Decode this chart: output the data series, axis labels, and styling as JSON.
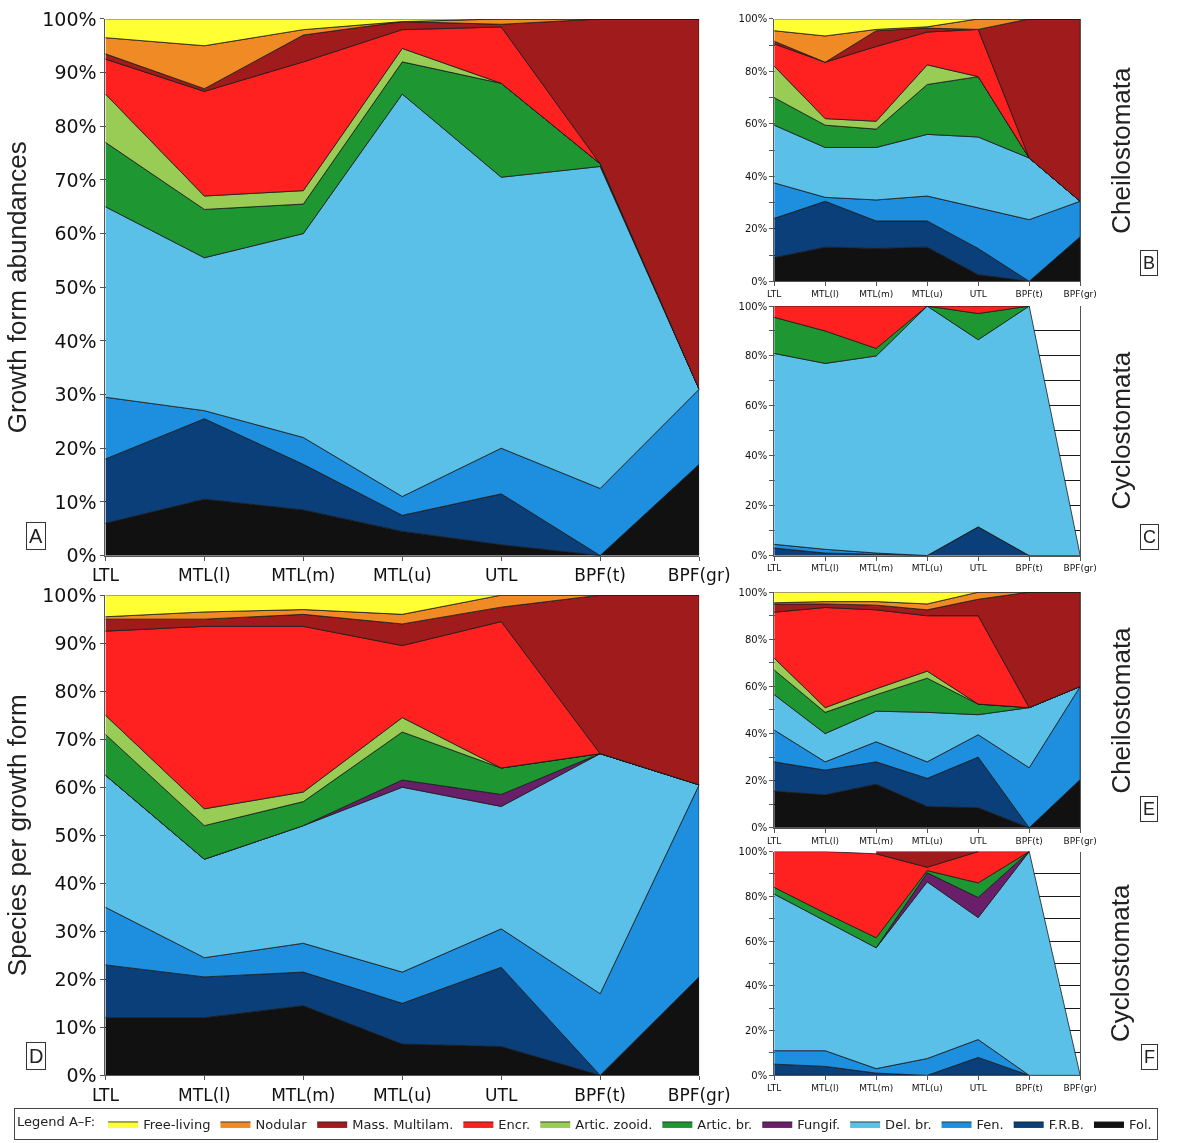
{
  "chart_data": [
    {
      "type": "area",
      "stacked": true,
      "ylabel": "Growth form abundances",
      "annotations": [
        "A"
      ],
      "legend": "bottom",
      "legend_title": "Legend A–F:",
      "grid": "y",
      "ylim": [
        0,
        100
      ],
      "yticks": [
        {
          "value": 0,
          "label": "0%"
        },
        {
          "value": 10,
          "label": "10%"
        },
        {
          "value": 20,
          "label": "20%"
        },
        {
          "value": 30,
          "label": "30%"
        },
        {
          "value": 40,
          "label": "40%"
        },
        {
          "value": 50,
          "label": "50%"
        },
        {
          "value": 60,
          "label": "60%"
        },
        {
          "value": 70,
          "label": "70%"
        },
        {
          "value": 80,
          "label": "80%"
        },
        {
          "value": 90,
          "label": "90%"
        },
        {
          "value": 100,
          "label": "100%"
        }
      ],
      "categories": [
        "LTL",
        "MTL(l)",
        "MTL(m)",
        "MTL(u)",
        "UTL",
        "BPF(t)",
        "BPF(gr)"
      ],
      "series": [
        {
          "name": "Fol.",
          "color": "#111111",
          "values": [
            6,
            10.5,
            8.5,
            4.5,
            2,
            0,
            17
          ]
        },
        {
          "name": "F.R.B.",
          "color": "#0a3f7a",
          "values": [
            12,
            15,
            8.5,
            3,
            9.5,
            0,
            0
          ]
        },
        {
          "name": "Fen.",
          "color": "#1e8fdf",
          "values": [
            11.5,
            1.5,
            5,
            3.5,
            8.5,
            12.5,
            14
          ]
        },
        {
          "name": "Del. br.",
          "color": "#5bc0e8",
          "values": [
            35.5,
            28.5,
            38,
            75,
            50.5,
            60,
            0
          ]
        },
        {
          "name": "Artic. br.",
          "color": "#1e9632",
          "values": [
            12,
            9,
            5.5,
            6,
            17.5,
            0.5,
            0
          ]
        },
        {
          "name": "Artic. zooid.",
          "color": "#99cc55",
          "values": [
            9,
            2.5,
            2.5,
            2.5,
            0,
            0,
            0
          ]
        },
        {
          "name": "Encr.",
          "color": "#ff2020",
          "values": [
            6.5,
            19.5,
            24,
            3.5,
            10.5,
            0,
            0
          ]
        },
        {
          "name": "Mass. Multilam.",
          "color": "#a01c1c",
          "values": [
            1,
            0.5,
            5,
            1.5,
            0.5,
            27,
            69
          ]
        },
        {
          "name": "Nodular",
          "color": "#f08a24",
          "values": [
            3,
            8,
            1,
            0,
            1,
            0,
            0
          ]
        },
        {
          "name": "Free-living",
          "color": "#ffff33",
          "values": [
            3.5,
            5,
            2,
            0.5,
            0,
            0,
            0
          ]
        }
      ]
    },
    {
      "type": "area",
      "stacked": true,
      "ylabel": "Cheilostomata",
      "annotations": [
        "B"
      ],
      "legend": "bottom",
      "grid": "y",
      "ylim": [
        0,
        100
      ],
      "yticks": [
        {
          "value": 0,
          "label": "0%"
        },
        {
          "value": 10,
          "label": null
        },
        {
          "value": 20,
          "label": "20%"
        },
        {
          "value": 30,
          "label": null
        },
        {
          "value": 40,
          "label": "40%"
        },
        {
          "value": 50,
          "label": null
        },
        {
          "value": 60,
          "label": "60%"
        },
        {
          "value": 70,
          "label": null
        },
        {
          "value": 80,
          "label": "80%"
        },
        {
          "value": 90,
          "label": null
        },
        {
          "value": 100,
          "label": "100%"
        }
      ],
      "categories": [
        "LTL",
        "MTL(l)",
        "MTL(m)",
        "MTL(u)",
        "UTL",
        "BPF(t)",
        "BPF(gr)"
      ],
      "series": [
        {
          "name": "Fol.",
          "color": "#111111",
          "values": [
            9,
            13,
            12.5,
            13,
            2.5,
            0,
            17
          ]
        },
        {
          "name": "F.R.B.",
          "color": "#0a3f7a",
          "values": [
            15,
            17.5,
            10.5,
            10,
            10,
            0,
            0
          ]
        },
        {
          "name": "Fen.",
          "color": "#1e8fdf",
          "values": [
            13.5,
            1.5,
            8,
            9.5,
            15.5,
            23.5,
            13.5
          ]
        },
        {
          "name": "Del. br.",
          "color": "#5bc0e8",
          "values": [
            22,
            19,
            20,
            23.5,
            27,
            23.5,
            0
          ]
        },
        {
          "name": "Artic. br.",
          "color": "#1e9632",
          "values": [
            10.5,
            8.5,
            7,
            19,
            23,
            0,
            0
          ]
        },
        {
          "name": "Artic. zooid.",
          "color": "#99cc55",
          "values": [
            12,
            2.5,
            3,
            7.5,
            0,
            0,
            0
          ]
        },
        {
          "name": "Encr.",
          "color": "#ff2020",
          "values": [
            8.5,
            21.5,
            28.5,
            12.5,
            18,
            0,
            0
          ]
        },
        {
          "name": "Mass. Multilam.",
          "color": "#a01c1c",
          "values": [
            1,
            0,
            6,
            1.5,
            0,
            53,
            69.5
          ]
        },
        {
          "name": "Nodular",
          "color": "#f08a24",
          "values": [
            4,
            10,
            0.5,
            0.5,
            4,
            0,
            0
          ]
        },
        {
          "name": "Free-living",
          "color": "#ffff33",
          "values": [
            4.5,
            6.5,
            4,
            3,
            0,
            0,
            0
          ]
        }
      ]
    },
    {
      "type": "area",
      "stacked": true,
      "ylabel": "Cyclostomata",
      "annotations": [
        "C"
      ],
      "legend": "bottom",
      "grid": "y",
      "ylim": [
        0,
        100
      ],
      "yticks": [
        {
          "value": 0,
          "label": "0%"
        },
        {
          "value": 10,
          "label": null
        },
        {
          "value": 20,
          "label": "20%"
        },
        {
          "value": 30,
          "label": null
        },
        {
          "value": 40,
          "label": "40%"
        },
        {
          "value": 50,
          "label": null
        },
        {
          "value": 60,
          "label": "60%"
        },
        {
          "value": 70,
          "label": null
        },
        {
          "value": 80,
          "label": "80%"
        },
        {
          "value": 90,
          "label": null
        },
        {
          "value": 100,
          "label": "100%"
        }
      ],
      "categories": [
        "LTL",
        "MTL(l)",
        "MTL(m)",
        "MTL(u)",
        "UTL",
        "BPF(t)",
        "BPF(gr)"
      ],
      "series": [
        {
          "name": "F.R.B.",
          "color": "#0a3f7a",
          "values": [
            3,
            1,
            0.5,
            0,
            11.5,
            0,
            0
          ]
        },
        {
          "name": "Fen.",
          "color": "#1e8fdf",
          "values": [
            1.5,
            1.5,
            0.5,
            0,
            0,
            0,
            null
          ]
        },
        {
          "name": "Del. br.",
          "color": "#5bc0e8",
          "values": [
            76.5,
            74.5,
            79,
            100,
            75,
            100,
            0
          ]
        },
        {
          "name": "Artic. br.",
          "color": "#1e9632",
          "values": [
            14.5,
            13,
            3,
            0,
            10.5,
            0,
            null
          ]
        },
        {
          "name": "Encr.",
          "color": "#ff2020",
          "values": [
            4.5,
            10,
            17,
            0,
            3,
            0,
            null
          ]
        }
      ]
    },
    {
      "type": "area",
      "stacked": true,
      "ylabel": "Species per growth form",
      "annotations": [
        "D"
      ],
      "grid": "y",
      "ylim": [
        0,
        100
      ],
      "legend": "bottom",
      "yticks": [
        {
          "value": 0,
          "label": "0%"
        },
        {
          "value": 10,
          "label": "10%"
        },
        {
          "value": 20,
          "label": "20%"
        },
        {
          "value": 30,
          "label": "30%"
        },
        {
          "value": 40,
          "label": "40%"
        },
        {
          "value": 50,
          "label": "50%"
        },
        {
          "value": 60,
          "label": "60%"
        },
        {
          "value": 70,
          "label": "70%"
        },
        {
          "value": 80,
          "label": "80%"
        },
        {
          "value": 90,
          "label": "90%"
        },
        {
          "value": 100,
          "label": "100%"
        }
      ],
      "categories": [
        "LTL",
        "MTL(l)",
        "MTL(m)",
        "MTL(u)",
        "UTL",
        "BPF(t)",
        "BPF(gr)"
      ],
      "series": [
        {
          "name": "Fol.",
          "color": "#111111",
          "values": [
            12,
            12,
            14.5,
            6.5,
            6,
            0,
            20.5
          ]
        },
        {
          "name": "F.R.B.",
          "color": "#0a3f7a",
          "values": [
            11,
            8.5,
            7,
            8.5,
            16.5,
            0,
            0
          ]
        },
        {
          "name": "Fen.",
          "color": "#1e8fdf",
          "values": [
            12,
            4,
            6,
            6.5,
            8,
            17,
            40
          ]
        },
        {
          "name": "Del. br.",
          "color": "#5bc0e8",
          "values": [
            27.5,
            20.5,
            24.5,
            38.5,
            25.5,
            50,
            0
          ]
        },
        {
          "name": "Fungif.",
          "color": "#6b1f6b",
          "values": [
            0,
            0,
            0,
            1.5,
            2.5,
            0,
            0
          ]
        },
        {
          "name": "Artic. br.",
          "color": "#1e9632",
          "values": [
            8.5,
            7,
            5,
            10,
            5.5,
            0,
            0
          ]
        },
        {
          "name": "Artic. zooid.",
          "color": "#99cc55",
          "values": [
            4,
            3.5,
            2,
            3,
            0,
            0,
            0
          ]
        },
        {
          "name": "Encr.",
          "color": "#ff2020",
          "values": [
            17.5,
            38,
            34.5,
            15,
            30.5,
            0,
            0
          ]
        },
        {
          "name": "Mass. Multilam.",
          "color": "#a01c1c",
          "values": [
            2.5,
            1.5,
            2.5,
            4.5,
            3,
            33,
            39.5
          ]
        },
        {
          "name": "Nodular",
          "color": "#f08a24",
          "values": [
            0.5,
            1.5,
            1,
            2,
            2.5,
            0,
            0
          ]
        },
        {
          "name": "Free-living",
          "color": "#ffff33",
          "values": [
            4.5,
            3.5,
            3,
            4,
            0,
            0,
            0
          ]
        }
      ]
    },
    {
      "type": "area",
      "stacked": true,
      "ylabel": "Cheilostomata",
      "annotations": [
        "E"
      ],
      "legend": "bottom",
      "grid": "y",
      "ylim": [
        0,
        100
      ],
      "yticks": [
        {
          "value": 0,
          "label": "0%"
        },
        {
          "value": 10,
          "label": null
        },
        {
          "value": 20,
          "label": "20%"
        },
        {
          "value": 30,
          "label": null
        },
        {
          "value": 40,
          "label": "40%"
        },
        {
          "value": 50,
          "label": null
        },
        {
          "value": 60,
          "label": "60%"
        },
        {
          "value": 70,
          "label": null
        },
        {
          "value": 80,
          "label": "80%"
        },
        {
          "value": 90,
          "label": null
        },
        {
          "value": 100,
          "label": "100%"
        }
      ],
      "categories": [
        "LTL",
        "MTL(l)",
        "MTL(m)",
        "MTL(u)",
        "UTL",
        "BPF(t)",
        "BPF(gr)"
      ],
      "series": [
        {
          "name": "Fol.",
          "color": "#111111",
          "values": [
            15.5,
            14,
            18.5,
            9,
            8.5,
            0,
            20.5
          ]
        },
        {
          "name": "F.R.B.",
          "color": "#0a3f7a",
          "values": [
            12.5,
            10.5,
            9.5,
            12,
            21.5,
            0,
            0
          ]
        },
        {
          "name": "Fen.",
          "color": "#1e8fdf",
          "values": [
            13.5,
            3.5,
            8.5,
            7,
            9.5,
            25.5,
            39.5
          ]
        },
        {
          "name": "Del. br.",
          "color": "#5bc0e8",
          "values": [
            15,
            12,
            13,
            21,
            8.5,
            25.5,
            0
          ]
        },
        {
          "name": "Artic. br.",
          "color": "#1e9632",
          "values": [
            10.5,
            9,
            7,
            14.5,
            4.5,
            0,
            0
          ]
        },
        {
          "name": "Artic. zooid.",
          "color": "#99cc55",
          "values": [
            5,
            2,
            2.5,
            3,
            0,
            0,
            0
          ]
        },
        {
          "name": "Encr.",
          "color": "#ff2020",
          "values": [
            19.5,
            42.5,
            33.5,
            23.5,
            37.5,
            0,
            0
          ]
        },
        {
          "name": "Mass. Multilam.",
          "color": "#a01c1c",
          "values": [
            3.5,
            1.5,
            2,
            2.5,
            7,
            49,
            40
          ]
        },
        {
          "name": "Nodular",
          "color": "#f08a24",
          "values": [
            0.5,
            1,
            1.5,
            2.5,
            3,
            0,
            0
          ]
        },
        {
          "name": "Free-living",
          "color": "#ffff33",
          "values": [
            4.5,
            4,
            4,
            5,
            0,
            0,
            0
          ]
        }
      ]
    },
    {
      "type": "area",
      "stacked": true,
      "ylabel": "Cyclostomata",
      "annotations": [
        "F"
      ],
      "legend": "bottom",
      "grid": "y",
      "ylim": [
        0,
        100
      ],
      "yticks": [
        {
          "value": 0,
          "label": "0%"
        },
        {
          "value": 10,
          "label": null
        },
        {
          "value": 20,
          "label": "20%"
        },
        {
          "value": 30,
          "label": null
        },
        {
          "value": 40,
          "label": "40%"
        },
        {
          "value": 50,
          "label": null
        },
        {
          "value": 60,
          "label": "60%"
        },
        {
          "value": 70,
          "label": null
        },
        {
          "value": 80,
          "label": "80%"
        },
        {
          "value": 90,
          "label": null
        },
        {
          "value": 100,
          "label": "100%"
        }
      ],
      "categories": [
        "LTL",
        "MTL(l)",
        "MTL(m)",
        "MTL(u)",
        "UTL",
        "BPF(t)",
        "BPF(gr)"
      ],
      "series": [
        {
          "name": "F.R.B.",
          "color": "#0a3f7a",
          "values": [
            5,
            4,
            1,
            0,
            8,
            0,
            0
          ]
        },
        {
          "name": "Fen.",
          "color": "#1e8fdf",
          "values": [
            6,
            7,
            2,
            7.5,
            8,
            0,
            0
          ]
        },
        {
          "name": "Del. br.",
          "color": "#5bc0e8",
          "values": [
            70,
            58,
            54,
            79,
            54.5,
            100,
            0
          ]
        },
        {
          "name": "Fungif.",
          "color": "#6b1f6b",
          "values": [
            null,
            null,
            0,
            4,
            9,
            0,
            null
          ]
        },
        {
          "name": "Artic. br.",
          "color": "#1e9632",
          "values": [
            3,
            3.5,
            4.5,
            1,
            6.5,
            0,
            null
          ]
        },
        {
          "name": "Encr.",
          "color": "#ff2020",
          "values": [
            16,
            27.5,
            37.5,
            1.5,
            14,
            0,
            null
          ]
        },
        {
          "name": "Mass. Multilam.",
          "color": "#a01c1c",
          "values": [
            null,
            null,
            1,
            7,
            0,
            null,
            null
          ]
        }
      ]
    }
  ]
}
